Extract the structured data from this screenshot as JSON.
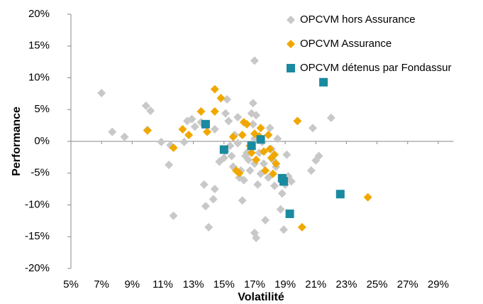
{
  "chart_data": {
    "type": "scatter",
    "x_label": "Volatilité",
    "y_label": "Performance",
    "xlim": [
      5,
      30
    ],
    "xticks": [
      {
        "value": 5,
        "label": "5%"
      },
      {
        "value": 7,
        "label": "7%"
      },
      {
        "value": 9,
        "label": "9%"
      },
      {
        "value": 11,
        "label": "11%"
      },
      {
        "value": 13,
        "label": "13%"
      },
      {
        "value": 15,
        "label": "15%"
      },
      {
        "value": 17,
        "label": "17%"
      },
      {
        "value": 19,
        "label": "19%"
      },
      {
        "value": 21,
        "label": "21%"
      },
      {
        "value": 23,
        "label": "23%"
      },
      {
        "value": 25,
        "label": "25%"
      },
      {
        "value": 27,
        "label": "27%"
      },
      {
        "value": 29,
        "label": "29%"
      }
    ],
    "ylim": [
      -20,
      20
    ],
    "yticks": [
      {
        "value": -20,
        "label": "-20%"
      },
      {
        "value": -15,
        "label": "-15%"
      },
      {
        "value": -10,
        "label": "-10%"
      },
      {
        "value": -5,
        "label": "-5%"
      },
      {
        "value": 0,
        "label": "0%"
      },
      {
        "value": 5,
        "label": "5%"
      },
      {
        "value": 10,
        "label": "10%"
      },
      {
        "value": 15,
        "label": "15%"
      },
      {
        "value": 20,
        "label": "20%"
      }
    ],
    "grid": false,
    "legend": "upper right",
    "series": [
      {
        "name": "OPCVM hors Assurance",
        "color": "#c8c8c8",
        "marker": "diamond",
        "x": [
          7.7,
          7.0,
          8.5,
          10.0,
          9.9,
          10.2,
          10.9,
          11.5,
          11.4,
          11.7,
          12.4,
          12.6,
          12.9,
          13.1,
          13.5,
          13.7,
          13.8,
          14.0,
          14.3,
          14.4,
          14.4,
          14.7,
          15.0,
          15.1,
          15.2,
          15.1,
          15.3,
          15.4,
          15.6,
          15.7,
          15.9,
          15.9,
          16.0,
          16.1,
          16.2,
          16.3,
          16.4,
          16.5,
          16.6,
          16.7,
          16.8,
          16.9,
          16.9,
          17.0,
          17.0,
          17.0,
          17.0,
          17.1,
          17.2,
          17.3,
          17.4,
          17.5,
          17.6,
          17.7,
          17.9,
          18.0,
          18.1,
          18.2,
          18.3,
          18.4,
          18.5,
          18.7,
          18.8,
          18.9,
          19.0,
          19.1,
          19.2,
          19.4,
          20.7,
          20.8,
          21.0,
          21.2,
          22.0,
          17.1,
          15.5
        ],
        "values": [
          1.5,
          7.6,
          0.7,
          1.8,
          5.6,
          4.8,
          -0.1,
          -0.6,
          -3.7,
          -11.7,
          -0.1,
          3.2,
          3.5,
          2.3,
          3.0,
          -6.8,
          -10.2,
          -13.5,
          -9.1,
          -7.5,
          1.9,
          -3.2,
          -2.6,
          -1.5,
          6.6,
          4.4,
          3.2,
          -0.7,
          -4.0,
          1.0,
          -0.3,
          3.8,
          -5.7,
          -4.6,
          -9.3,
          -6.1,
          -2.3,
          -1.8,
          -2.9,
          -4.6,
          4.4,
          6.0,
          2.7,
          0.4,
          -3.5,
          12.7,
          -14.4,
          -15.2,
          -6.8,
          -1.8,
          -5.1,
          -0.1,
          -3.5,
          -12.4,
          -5.7,
          2.1,
          -1.2,
          -2.9,
          -7.0,
          -4.0,
          0.4,
          -10.7,
          -8.2,
          -13.9,
          -6.8,
          -2.1,
          -5.5,
          -6.3,
          -4.6,
          2.1,
          -3.0,
          -2.3,
          3.7,
          4.1,
          -2.3
        ]
      },
      {
        "name": "OPCVM Assurance",
        "color": "#f0a800",
        "marker": "diamond",
        "x": [
          10.0,
          11.7,
          12.3,
          12.7,
          13.5,
          13.9,
          14.4,
          14.4,
          14.8,
          15.6,
          15.8,
          16.0,
          16.2,
          16.3,
          16.5,
          16.7,
          16.8,
          17.0,
          17.1,
          17.3,
          17.4,
          17.6,
          17.7,
          17.9,
          18.0,
          18.1,
          18.2,
          18.3,
          18.4,
          19.8,
          20.1,
          24.4
        ],
        "values": [
          1.7,
          -1.0,
          1.9,
          1.0,
          4.7,
          1.5,
          8.2,
          4.7,
          6.8,
          0.7,
          -4.6,
          -5.0,
          1.0,
          3.0,
          2.7,
          -0.7,
          -1.8,
          1.2,
          -2.9,
          0.8,
          2.1,
          -1.6,
          -4.6,
          1.0,
          -1.2,
          -2.6,
          -5.1,
          -2.1,
          -3.5,
          3.2,
          -13.5,
          -8.8
        ]
      },
      {
        "name": "OPCVM détenus par Fondassur",
        "color": "#1a8aa0",
        "marker": "square",
        "x": [
          13.8,
          15.0,
          16.8,
          17.4,
          18.8,
          18.9,
          19.3,
          21.5,
          22.6
        ],
        "values": [
          2.7,
          -1.3,
          -0.7,
          0.3,
          -5.8,
          -6.3,
          -11.4,
          9.3,
          -8.3
        ]
      }
    ]
  }
}
